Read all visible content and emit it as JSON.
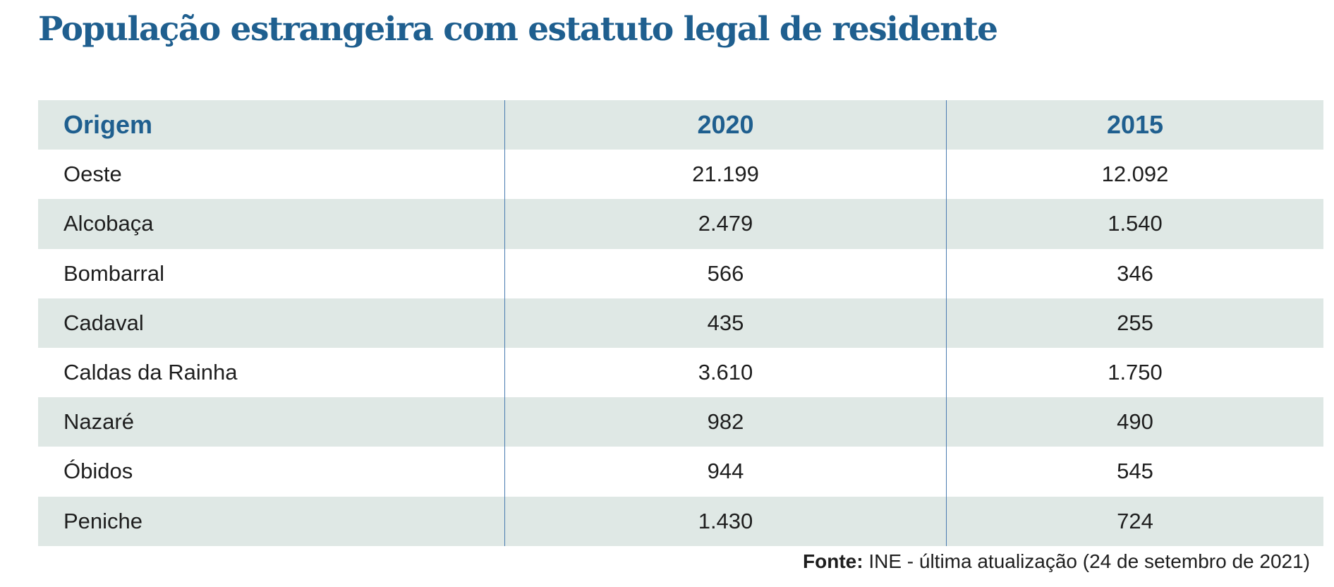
{
  "title": "População estrangeira com estatuto legal de residente",
  "table": {
    "headers": [
      "Origem",
      "2020",
      "2015"
    ],
    "rows": [
      [
        "Oeste",
        "21.199",
        "12.092"
      ],
      [
        "Alcobaça",
        "2.479",
        "1.540"
      ],
      [
        "Bombarral",
        "566",
        "346"
      ],
      [
        "Cadaval",
        "435",
        "255"
      ],
      [
        "Caldas da Rainha",
        "3.610",
        "1.750"
      ],
      [
        "Nazaré",
        "982",
        "490"
      ],
      [
        "Óbidos",
        "944",
        "545"
      ],
      [
        "Peniche",
        "1.430",
        "724"
      ]
    ]
  },
  "footer": {
    "label": "Fonte:",
    "text": " INE - última atualização (24 de setembro de 2021)"
  },
  "colors": {
    "title": "#1f5f8f",
    "stripe": "#dfe8e5",
    "divider": "#4a7bb0"
  }
}
